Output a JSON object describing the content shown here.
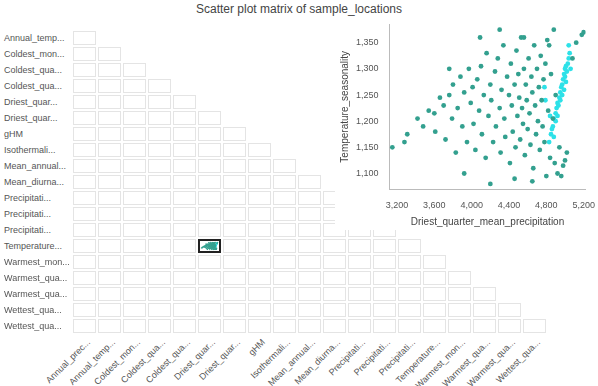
{
  "chart_data": [
    {
      "type": "scatter_matrix",
      "title": "Scatter plot matrix of sample_locations",
      "rows": [
        "Annual_temp...",
        "Coldest_mon...",
        "Coldest_qua...",
        "Coldest_qua...",
        "Driest_quar...",
        "Driest_quar...",
        "gHM",
        "Isothermali...",
        "Mean_annual...",
        "Mean_diurna...",
        "Precipitati...",
        "Precipitati...",
        "Precipitati...",
        "Temperature...",
        "Warmest_mon...",
        "Warmest_qua...",
        "Warmest_qua...",
        "Wettest_qua...",
        "Wettest_qua..."
      ],
      "columns": [
        "Annual_prec...",
        "Annual_temp...",
        "Coldest_mon...",
        "Coldest_qua...",
        "Coldest_qua...",
        "Driest_quar...",
        "Driest_quar...",
        "gHM",
        "Isothermali...",
        "Mean_annual...",
        "Mean_diurna...",
        "Precipitati...",
        "Precipitati...",
        "Precipitati...",
        "Temperature...",
        "Warmest_mon...",
        "Warmest_qua...",
        "Warmest_qua...",
        "Wettest_qua..."
      ],
      "selected_cell": {
        "row": 13,
        "column": 5
      },
      "tick_labels": false
    },
    {
      "type": "scatter",
      "xlabel": "Driest_quarter_mean_precipitation",
      "ylabel": "Temperature_seasonality",
      "xlim": [
        3120,
        5220
      ],
      "ylim": [
        1070,
        1385
      ],
      "xticks": [
        {
          "value": 3200,
          "label": "3,200"
        },
        {
          "value": 3600,
          "label": "3,600"
        },
        {
          "value": 4000,
          "label": "4,000"
        },
        {
          "value": 4400,
          "label": "4,400"
        },
        {
          "value": 4800,
          "label": "4,800"
        },
        {
          "value": 5200,
          "label": "5,200"
        }
      ],
      "yticks": [
        {
          "value": 1100,
          "label": "1,100"
        },
        {
          "value": 1150,
          "label": "1,150"
        },
        {
          "value": 1200,
          "label": "1,200"
        },
        {
          "value": 1250,
          "label": "1,250"
        },
        {
          "value": 1300,
          "label": "1,300"
        },
        {
          "value": 1350,
          "label": "1,350"
        }
      ],
      "grid": false,
      "marker": "circle",
      "series": [
        {
          "color": "#33a08f",
          "x": [
            3150,
            3280,
            3310,
            3420,
            3480,
            3540,
            3600,
            3610,
            3660,
            3700,
            3720,
            3760,
            3790,
            3800,
            3830,
            3850,
            3880,
            3900,
            3920,
            3950,
            3970,
            3990,
            4010,
            4020,
            4040,
            4060,
            4080,
            4100,
            4110,
            4130,
            4150,
            4160,
            4180,
            4200,
            4210,
            4230,
            4250,
            4260,
            4280,
            4300,
            4310,
            4320,
            4340,
            4350,
            4360,
            4380,
            4400,
            4410,
            4420,
            4430,
            4440,
            4460,
            4470,
            4480,
            4490,
            4500,
            4510,
            4520,
            4530,
            4540,
            4550,
            4560,
            4570,
            4580,
            4590,
            4600,
            4610,
            4620,
            4630,
            4640,
            4650,
            4660,
            4670,
            4680,
            4690,
            4700,
            4710,
            4720,
            4730,
            4740,
            4750,
            4760,
            4770,
            4780,
            4790,
            4800,
            4810,
            4820,
            4830,
            4840,
            4850,
            4870,
            4880,
            4890,
            4900,
            4920,
            4940,
            4960,
            4980,
            5000,
            5020,
            5180,
            5200,
            5080,
            5120,
            4560,
            4300,
            4090,
            3760,
            3920,
            4200,
            4460,
            4650
          ],
          "values": [
            1150,
            1160,
            1175,
            1205,
            1190,
            1220,
            1215,
            1180,
            1245,
            1230,
            1165,
            1250,
            1205,
            1270,
            1140,
            1225,
            1285,
            1190,
            1255,
            1160,
            1300,
            1235,
            1265,
            1195,
            1145,
            1280,
            1220,
            1305,
            1175,
            1250,
            1130,
            1330,
            1210,
            1270,
            1240,
            1160,
            1295,
            1190,
            1320,
            1225,
            1140,
            1260,
            1345,
            1205,
            1170,
            1285,
            1250,
            1120,
            1310,
            1230,
            1180,
            1270,
            1150,
            1335,
            1210,
            1290,
            1245,
            1165,
            1360,
            1225,
            1195,
            1300,
            1135,
            1270,
            1240,
            1185,
            1320,
            1215,
            1155,
            1285,
            1255,
            1110,
            1345,
            1230,
            1175,
            1300,
            1200,
            1265,
            1145,
            1325,
            1240,
            1190,
            1280,
            1160,
            1310,
            1095,
            1355,
            1220,
            1345,
            1130,
            1290,
            1205,
            1375,
            1120,
            1250,
            1100,
            1150,
            1095,
            1115,
            1125,
            1140,
            1365,
            1370,
            1320,
            1350,
            1360,
            1375,
            1360,
            1300,
            1100,
            1080,
            1090,
            1085
          ]
        },
        {
          "color": "#2de1e8",
          "x": [
            4830,
            4850,
            4870,
            4880,
            4900,
            4910,
            4920,
            4930,
            4940,
            4950,
            4960,
            4970,
            4980,
            4990,
            5000,
            5010,
            5020,
            5030,
            5040,
            5050,
            4970,
            4990,
            5010,
            4950,
            4900,
            4860,
            4880,
            4920,
            5000,
            4840,
            4790,
            4780,
            5060,
            5040
          ],
          "values": [
            1160,
            1175,
            1190,
            1205,
            1215,
            1225,
            1235,
            1230,
            1245,
            1255,
            1265,
            1270,
            1280,
            1290,
            1300,
            1305,
            1295,
            1310,
            1320,
            1330,
            1250,
            1260,
            1275,
            1240,
            1200,
            1185,
            1170,
            1210,
            1285,
            1210,
            1240,
            1265,
            1300,
            1345
          ]
        }
      ]
    }
  ]
}
